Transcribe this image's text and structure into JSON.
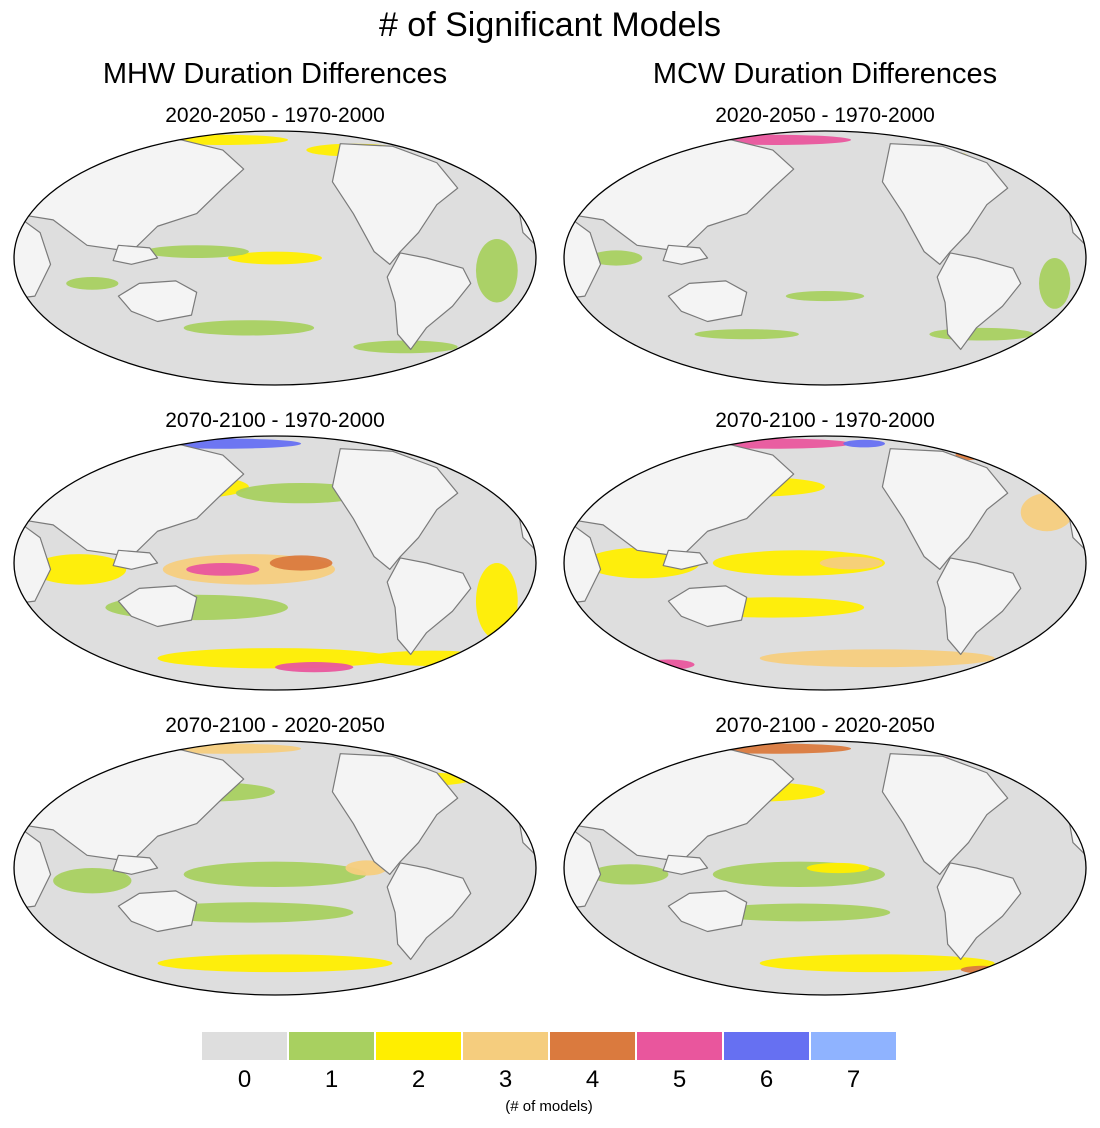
{
  "title": "# of Significant Models",
  "columns": [
    "MHW Duration Differences",
    "MCW Duration Differences"
  ],
  "panels": [
    {
      "label": "2020-2050 - 1970-2000",
      "column": "MHW Duration Differences"
    },
    {
      "label": "2020-2050 - 1970-2000",
      "column": "MCW Duration Differences"
    },
    {
      "label": "2070-2100 - 1970-2000",
      "column": "MHW Duration Differences"
    },
    {
      "label": "2070-2100 - 1970-2000",
      "column": "MCW Duration Differences"
    },
    {
      "label": "2070-2100 - 2020-2050",
      "column": "MHW Duration Differences"
    },
    {
      "label": "2070-2100 - 2020-2050",
      "column": "MCW Duration Differences"
    }
  ],
  "legend": {
    "values": [
      "0",
      "1",
      "2",
      "3",
      "4",
      "5",
      "6",
      "7"
    ],
    "colors": [
      "#dedede",
      "#a8d060",
      "#ffee00",
      "#f5cd7e",
      "#da7a3e",
      "#e9569d",
      "#6670f2",
      "#8fb3ff"
    ],
    "units": "(# of models)"
  },
  "colors": {
    "land": "#f4f4f4",
    "ocean_zero": "#dedede",
    "coastline": "#7a7a7a"
  }
}
